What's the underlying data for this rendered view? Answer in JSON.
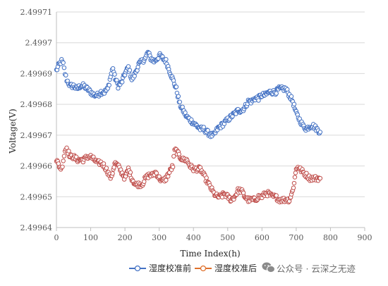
{
  "chart_data": {
    "type": "scatter",
    "xlabel": "Time Index(h)",
    "ylabel": "Voltage(V)",
    "xlim": [
      0,
      900
    ],
    "ylim": [
      2.49964,
      2.49971
    ],
    "x_ticks": [
      "0",
      "100",
      "200",
      "300",
      "400",
      "500",
      "600",
      "700",
      "800",
      "900"
    ],
    "y_ticks": [
      "2.49964",
      "2.49965",
      "2.49966",
      "2.49967",
      "2.49968",
      "2.49969",
      "2.4997",
      "2.49971"
    ],
    "grid": "horizontal",
    "legend": "bottom",
    "series": [
      {
        "name": "湿度校准前",
        "color": "#4472c4",
        "points": [
          [
            0,
            2.499691
          ],
          [
            8,
            2.499693
          ],
          [
            15,
            2.499694
          ],
          [
            20,
            2.499693
          ],
          [
            25,
            2.49969
          ],
          [
            30,
            2.499688
          ],
          [
            35,
            2.499687
          ],
          [
            40,
            2.499686
          ],
          [
            50,
            2.499686
          ],
          [
            60,
            2.499685
          ],
          [
            70,
            2.499686
          ],
          [
            80,
            2.499686
          ],
          [
            90,
            2.499685
          ],
          [
            100,
            2.499684
          ],
          [
            110,
            2.499683
          ],
          [
            120,
            2.499683
          ],
          [
            130,
            2.499684
          ],
          [
            140,
            2.499684
          ],
          [
            150,
            2.499685
          ],
          [
            160,
            2.49969
          ],
          [
            165,
            2.499692
          ],
          [
            170,
            2.499689
          ],
          [
            180,
            2.499686
          ],
          [
            190,
            2.499687
          ],
          [
            200,
            2.49969
          ],
          [
            210,
            2.499692
          ],
          [
            220,
            2.499688
          ],
          [
            230,
            2.49969
          ],
          [
            240,
            2.499693
          ],
          [
            250,
            2.499694
          ],
          [
            260,
            2.499695
          ],
          [
            267,
            2.499697
          ],
          [
            275,
            2.499695
          ],
          [
            285,
            2.499694
          ],
          [
            295,
            2.499695
          ],
          [
            300,
            2.499696
          ],
          [
            310,
            2.499695
          ],
          [
            320,
            2.499694
          ],
          [
            330,
            2.499691
          ],
          [
            340,
            2.499688
          ],
          [
            350,
            2.499685
          ],
          [
            360,
            2.49968
          ],
          [
            370,
            2.499678
          ],
          [
            380,
            2.499676
          ],
          [
            390,
            2.499675
          ],
          [
            400,
            2.499674
          ],
          [
            410,
            2.499673
          ],
          [
            420,
            2.499672
          ],
          [
            430,
            2.499672
          ],
          [
            440,
            2.499671
          ],
          [
            450,
            2.49967
          ],
          [
            460,
            2.49967
          ],
          [
            470,
            2.499672
          ],
          [
            480,
            2.499673
          ],
          [
            490,
            2.499674
          ],
          [
            500,
            2.499675
          ],
          [
            510,
            2.499676
          ],
          [
            520,
            2.499677
          ],
          [
            530,
            2.499678
          ],
          [
            540,
            2.499678
          ],
          [
            550,
            2.499679
          ],
          [
            560,
            2.499681
          ],
          [
            570,
            2.499681
          ],
          [
            580,
            2.499682
          ],
          [
            590,
            2.499682
          ],
          [
            600,
            2.499683
          ],
          [
            610,
            2.499683
          ],
          [
            620,
            2.499684
          ],
          [
            630,
            2.499684
          ],
          [
            640,
            2.499684
          ],
          [
            650,
            2.499685
          ],
          [
            660,
            2.499685
          ],
          [
            670,
            2.499685
          ],
          [
            680,
            2.499683
          ],
          [
            690,
            2.499681
          ],
          [
            700,
            2.499677
          ],
          [
            710,
            2.499675
          ],
          [
            720,
            2.499673
          ],
          [
            730,
            2.499672
          ],
          [
            740,
            2.499673
          ],
          [
            750,
            2.499673
          ],
          [
            760,
            2.499672
          ],
          [
            770,
            2.499671
          ]
        ]
      },
      {
        "name": "湿度校准后",
        "color": "#c0504d",
        "points": [
          [
            0,
            2.499662
          ],
          [
            8,
            2.49966
          ],
          [
            15,
            2.499659
          ],
          [
            20,
            2.499662
          ],
          [
            25,
            2.499665
          ],
          [
            30,
            2.499666
          ],
          [
            40,
            2.499663
          ],
          [
            50,
            2.499663
          ],
          [
            60,
            2.499662
          ],
          [
            70,
            2.499662
          ],
          [
            80,
            2.499662
          ],
          [
            90,
            2.499663
          ],
          [
            100,
            2.499663
          ],
          [
            110,
            2.499662
          ],
          [
            120,
            2.499661
          ],
          [
            130,
            2.499661
          ],
          [
            140,
            2.49966
          ],
          [
            150,
            2.499658
          ],
          [
            160,
            2.499656
          ],
          [
            170,
            2.499661
          ],
          [
            180,
            2.49966
          ],
          [
            190,
            2.499658
          ],
          [
            200,
            2.499656
          ],
          [
            210,
            2.499659
          ],
          [
            220,
            2.499656
          ],
          [
            230,
            2.499654
          ],
          [
            240,
            2.499654
          ],
          [
            250,
            2.499654
          ],
          [
            260,
            2.499656
          ],
          [
            270,
            2.499657
          ],
          [
            280,
            2.499657
          ],
          [
            290,
            2.499658
          ],
          [
            300,
            2.499656
          ],
          [
            310,
            2.499655
          ],
          [
            320,
            2.499656
          ],
          [
            330,
            2.499658
          ],
          [
            340,
            2.49966
          ],
          [
            345,
            2.499665
          ],
          [
            350,
            2.499665
          ],
          [
            360,
            2.499663
          ],
          [
            370,
            2.499662
          ],
          [
            380,
            2.499662
          ],
          [
            390,
            2.49966
          ],
          [
            400,
            2.499659
          ],
          [
            410,
            2.499659
          ],
          [
            420,
            2.499659
          ],
          [
            430,
            2.499657
          ],
          [
            440,
            2.499655
          ],
          [
            450,
            2.499653
          ],
          [
            460,
            2.499651
          ],
          [
            470,
            2.49965
          ],
          [
            480,
            2.49965
          ],
          [
            490,
            2.499651
          ],
          [
            500,
            2.49965
          ],
          [
            510,
            2.499649
          ],
          [
            520,
            2.49965
          ],
          [
            530,
            2.499652
          ],
          [
            540,
            2.499652
          ],
          [
            550,
            2.49965
          ],
          [
            560,
            2.499649
          ],
          [
            570,
            2.499649
          ],
          [
            580,
            2.499649
          ],
          [
            590,
            2.49965
          ],
          [
            600,
            2.49965
          ],
          [
            610,
            2.499651
          ],
          [
            620,
            2.499651
          ],
          [
            630,
            2.49965
          ],
          [
            640,
            2.49965
          ],
          [
            650,
            2.499649
          ],
          [
            660,
            2.499649
          ],
          [
            670,
            2.499649
          ],
          [
            680,
            2.499649
          ],
          [
            690,
            2.499652
          ],
          [
            700,
            2.499659
          ],
          [
            705,
            2.49966
          ],
          [
            710,
            2.499659
          ],
          [
            720,
            2.499658
          ],
          [
            730,
            2.499657
          ],
          [
            740,
            2.499656
          ],
          [
            750,
            2.499656
          ],
          [
            760,
            2.499656
          ],
          [
            770,
            2.499656
          ]
        ]
      }
    ]
  },
  "watermark": {
    "icon": "wechat-icon",
    "text": "公众号 · 云深之无迹"
  }
}
